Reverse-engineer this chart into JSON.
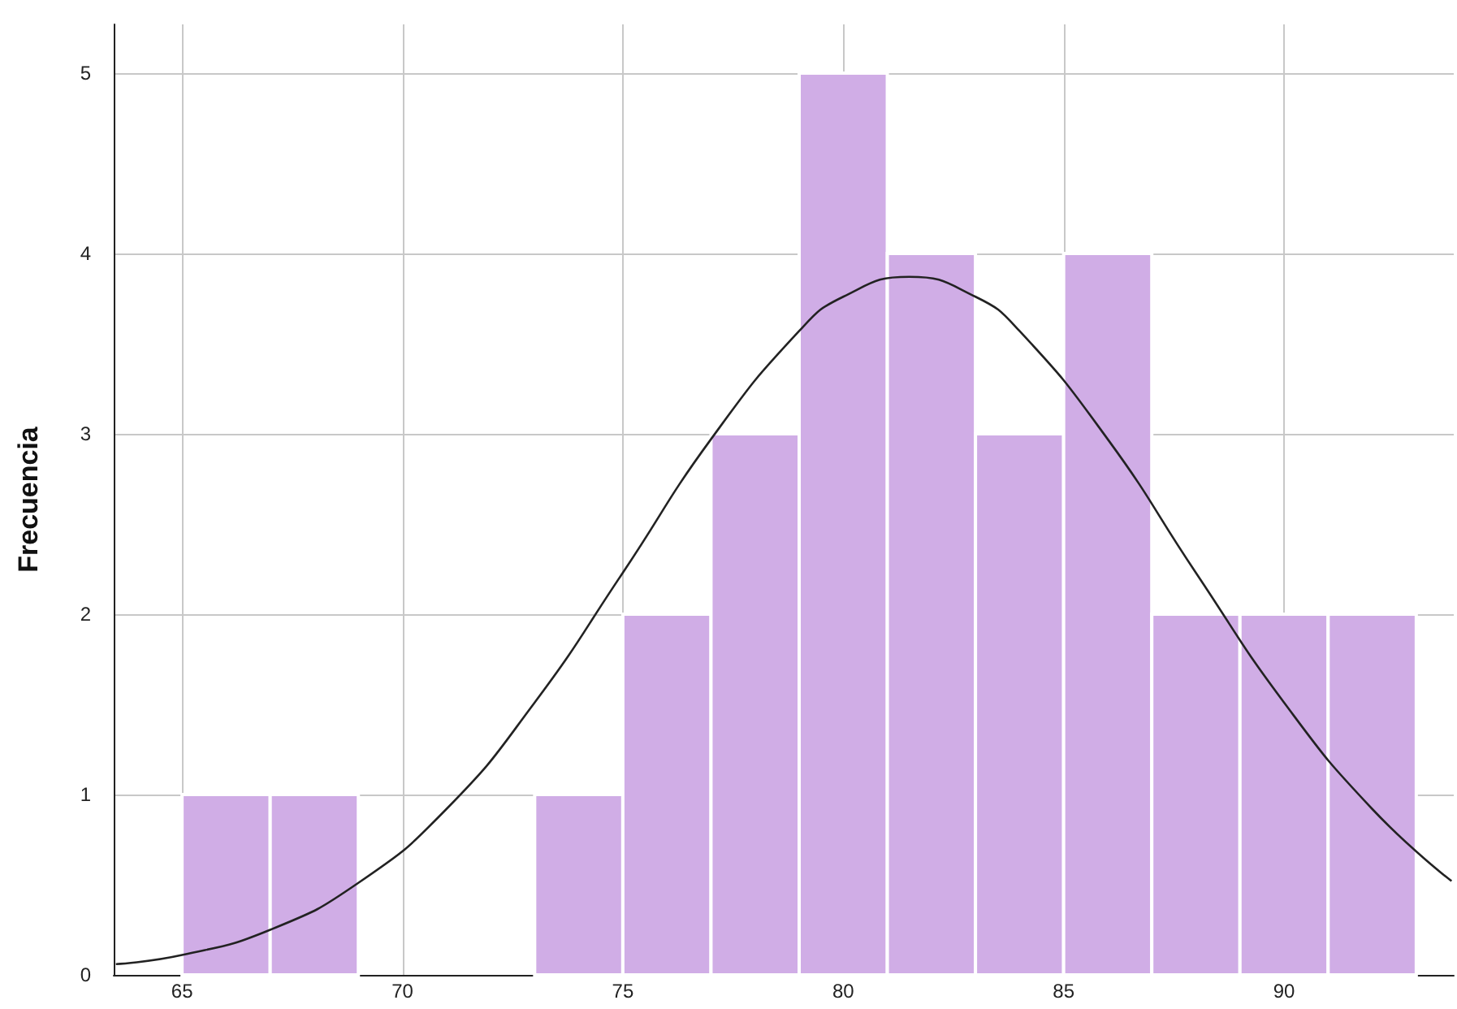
{
  "chart_data": {
    "type": "histogram",
    "ylabel": "Frecuencia",
    "bins": [
      65,
      67,
      69,
      71,
      73,
      75,
      77,
      79,
      81,
      83,
      85,
      87,
      89,
      91,
      93
    ],
    "values": [
      1,
      1,
      0,
      0,
      1,
      2,
      3,
      5,
      4,
      3,
      4,
      2,
      2,
      2
    ],
    "color": "#d0ade6",
    "series": [
      {
        "type": "line",
        "color": "#222222",
        "x": [
          63.5,
          65,
          67,
          69,
          71,
          73,
          75,
          77,
          79,
          80,
          81.5,
          83,
          84,
          86,
          88,
          90,
          92,
          93.8
        ],
        "values": [
          0.06,
          0.11,
          0.25,
          0.51,
          0.92,
          1.51,
          2.23,
          2.97,
          3.57,
          3.76,
          3.87,
          3.76,
          3.57,
          2.97,
          2.23,
          1.51,
          0.92,
          0.52
        ]
      }
    ],
    "xlim": [
      63.45,
      93.85
    ],
    "xticks": [
      65,
      70,
      75,
      80,
      85,
      90
    ],
    "ylim": [
      0,
      5.27
    ],
    "yticks": [
      0,
      1,
      2,
      3,
      4,
      5
    ],
    "grid": true,
    "marker": "none",
    "line_style": "solid"
  }
}
